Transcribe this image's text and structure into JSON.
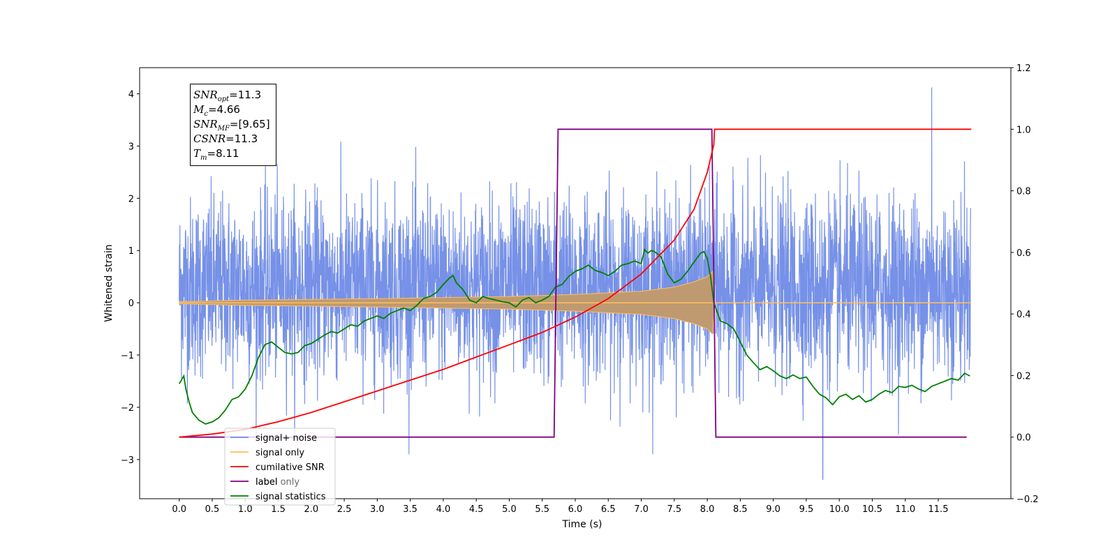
{
  "chart_data": {
    "type": "line",
    "xlabel": "Time (s)",
    "ylabel": "Whitened strain",
    "ylabel_right": "",
    "xlim": [
      -0.6,
      12.6
    ],
    "ylim": [
      -3.75,
      4.5
    ],
    "ylim_right": [
      -0.2,
      1.2
    ],
    "x_ticks": [
      "0.0",
      "0.5",
      "1.0",
      "1.5",
      "2.0",
      "2.5",
      "3.0",
      "3.5",
      "4.0",
      "4.5",
      "5.0",
      "5.5",
      "6.0",
      "6.5",
      "7.0",
      "7.5",
      "8.0",
      "8.5",
      "9.0",
      "9.5",
      "10.0",
      "10.5",
      "11.0",
      "11.5"
    ],
    "y_ticks": [
      "−3",
      "−2",
      "−1",
      "0",
      "1",
      "2",
      "3",
      "4"
    ],
    "y_ticks_right": [
      "−0.2",
      "0.0",
      "0.2",
      "0.4",
      "0.6",
      "0.8",
      "1.0",
      "1.2"
    ],
    "grid": false,
    "legend_position": "lower-left",
    "series": [
      {
        "name": "signal+ noise",
        "axis": "left",
        "color": "#6f8be6",
        "description_values": {
          "x_start": 0.0,
          "x_end": 11.99,
          "typical_range": [
            -1.6,
            2.2
          ],
          "peak_max": 4.12,
          "peak_max_x": 11.4,
          "peak_min": -3.38,
          "peak_min_x": 9.75
        }
      },
      {
        "name": "signal only",
        "axis": "left",
        "color": "#ffbe5c",
        "envelope": {
          "x": [
            0.0,
            1.0,
            3.0,
            5.0,
            6.0,
            7.0,
            7.5,
            7.8,
            8.0,
            8.08,
            8.11,
            12.0
          ],
          "amp": [
            0.02,
            0.05,
            0.08,
            0.12,
            0.16,
            0.22,
            0.3,
            0.4,
            0.5,
            0.6,
            0.0,
            0.0
          ]
        }
      },
      {
        "name": "cumilative SNR",
        "axis": "right",
        "color": "#ff0000",
        "x": [
          0.0,
          0.5,
          1.0,
          1.5,
          2.0,
          2.5,
          3.0,
          3.5,
          4.0,
          4.5,
          5.0,
          5.5,
          6.0,
          6.5,
          7.0,
          7.5,
          7.8,
          8.0,
          8.1,
          8.11,
          12.0
        ],
        "y": [
          0.0,
          0.01,
          0.025,
          0.05,
          0.08,
          0.115,
          0.15,
          0.185,
          0.22,
          0.26,
          0.3,
          0.34,
          0.39,
          0.45,
          0.53,
          0.64,
          0.74,
          0.86,
          0.95,
          1.0,
          1.0
        ]
      },
      {
        "name": "label",
        "axis": "right",
        "color": "#800080",
        "x": [
          0.0,
          5.68,
          5.74,
          8.07,
          8.13,
          11.93
        ],
        "y": [
          0.0,
          0.0,
          1.0,
          1.0,
          0.0,
          0.0
        ]
      },
      {
        "name": "signal statistics",
        "axis": "left",
        "color": "#008000",
        "x": [
          0.0,
          0.07,
          0.1,
          0.15,
          0.2,
          0.3,
          0.4,
          0.5,
          0.6,
          0.7,
          0.8,
          0.9,
          1.0,
          1.1,
          1.2,
          1.3,
          1.4,
          1.5,
          1.6,
          1.7,
          1.8,
          1.9,
          2.0,
          2.1,
          2.2,
          2.3,
          2.4,
          2.5,
          2.6,
          2.7,
          2.8,
          2.9,
          3.0,
          3.1,
          3.2,
          3.3,
          3.4,
          3.5,
          3.6,
          3.7,
          3.8,
          3.9,
          4.0,
          4.1,
          4.15,
          4.2,
          4.3,
          4.4,
          4.5,
          4.6,
          4.7,
          4.8,
          4.9,
          5.0,
          5.1,
          5.2,
          5.3,
          5.4,
          5.5,
          5.6,
          5.7,
          5.8,
          5.9,
          6.0,
          6.1,
          6.2,
          6.3,
          6.4,
          6.5,
          6.6,
          6.7,
          6.8,
          6.9,
          7.0,
          7.05,
          7.1,
          7.15,
          7.2,
          7.3,
          7.4,
          7.5,
          7.6,
          7.7,
          7.8,
          7.9,
          7.95,
          8.0,
          8.05,
          8.1,
          8.2,
          8.3,
          8.4,
          8.5,
          8.6,
          8.7,
          8.8,
          8.9,
          9.0,
          9.1,
          9.2,
          9.3,
          9.4,
          9.5,
          9.6,
          9.7,
          9.8,
          9.9,
          10.0,
          10.1,
          10.2,
          10.3,
          10.4,
          10.5,
          10.6,
          10.7,
          10.8,
          10.9,
          11.0,
          11.1,
          11.2,
          11.3,
          11.4,
          11.5,
          11.6,
          11.7,
          11.8,
          11.9,
          11.98
        ],
        "y": [
          -1.55,
          -1.4,
          -1.65,
          -1.9,
          -2.1,
          -2.25,
          -2.32,
          -2.28,
          -2.2,
          -2.05,
          -1.85,
          -1.8,
          -1.65,
          -1.4,
          -1.05,
          -0.8,
          -0.75,
          -0.85,
          -0.95,
          -0.98,
          -0.95,
          -0.82,
          -0.78,
          -0.7,
          -0.62,
          -0.55,
          -0.58,
          -0.5,
          -0.42,
          -0.45,
          -0.35,
          -0.3,
          -0.25,
          -0.3,
          -0.2,
          -0.15,
          -0.1,
          -0.15,
          -0.05,
          0.08,
          0.12,
          0.2,
          0.35,
          0.48,
          0.52,
          0.38,
          0.25,
          0.05,
          0.0,
          0.12,
          0.08,
          0.05,
          0.02,
          0.0,
          -0.08,
          0.05,
          0.1,
          0.0,
          0.05,
          0.12,
          0.3,
          0.35,
          0.5,
          0.6,
          0.65,
          0.72,
          0.62,
          0.58,
          0.52,
          0.6,
          0.72,
          0.75,
          0.8,
          0.75,
          1.02,
          0.95,
          1.0,
          0.98,
          0.88,
          0.55,
          0.38,
          0.45,
          0.6,
          0.78,
          0.95,
          0.98,
          0.85,
          0.5,
          0.0,
          -0.35,
          -0.4,
          -0.5,
          -0.75,
          -1.0,
          -1.15,
          -1.28,
          -1.22,
          -1.3,
          -1.4,
          -1.45,
          -1.38,
          -1.45,
          -1.42,
          -1.6,
          -1.75,
          -1.82,
          -1.95,
          -1.8,
          -1.75,
          -1.85,
          -1.78,
          -1.9,
          -1.85,
          -1.75,
          -1.68,
          -1.72,
          -1.6,
          -1.62,
          -1.58,
          -1.65,
          -1.7,
          -1.6,
          -1.55,
          -1.5,
          -1.45,
          -1.48,
          -1.35,
          -1.4
        ]
      }
    ],
    "annotations": {
      "snr_opt": "11.3",
      "mc": "4.66",
      "snr_mf": "[9.65]",
      "csnr": "11.3",
      "tm": "8.11"
    },
    "legend_overlap_text": "label only"
  },
  "infobox": {
    "snr_opt_sym": "SNR",
    "snr_opt_sub": "opt",
    "snr_opt_val": "=11.3",
    "mc_sym": "M",
    "mc_sub": "c",
    "mc_val": "=4.66",
    "snr_mf_sym": "SNR",
    "snr_mf_sub": "MF",
    "snr_mf_val": "=[9.65]",
    "csnr_sym": "CSNR",
    "csnr_val": "=11.3",
    "tm_sym": "T",
    "tm_sub": "m",
    "tm_val": "=8.11"
  }
}
